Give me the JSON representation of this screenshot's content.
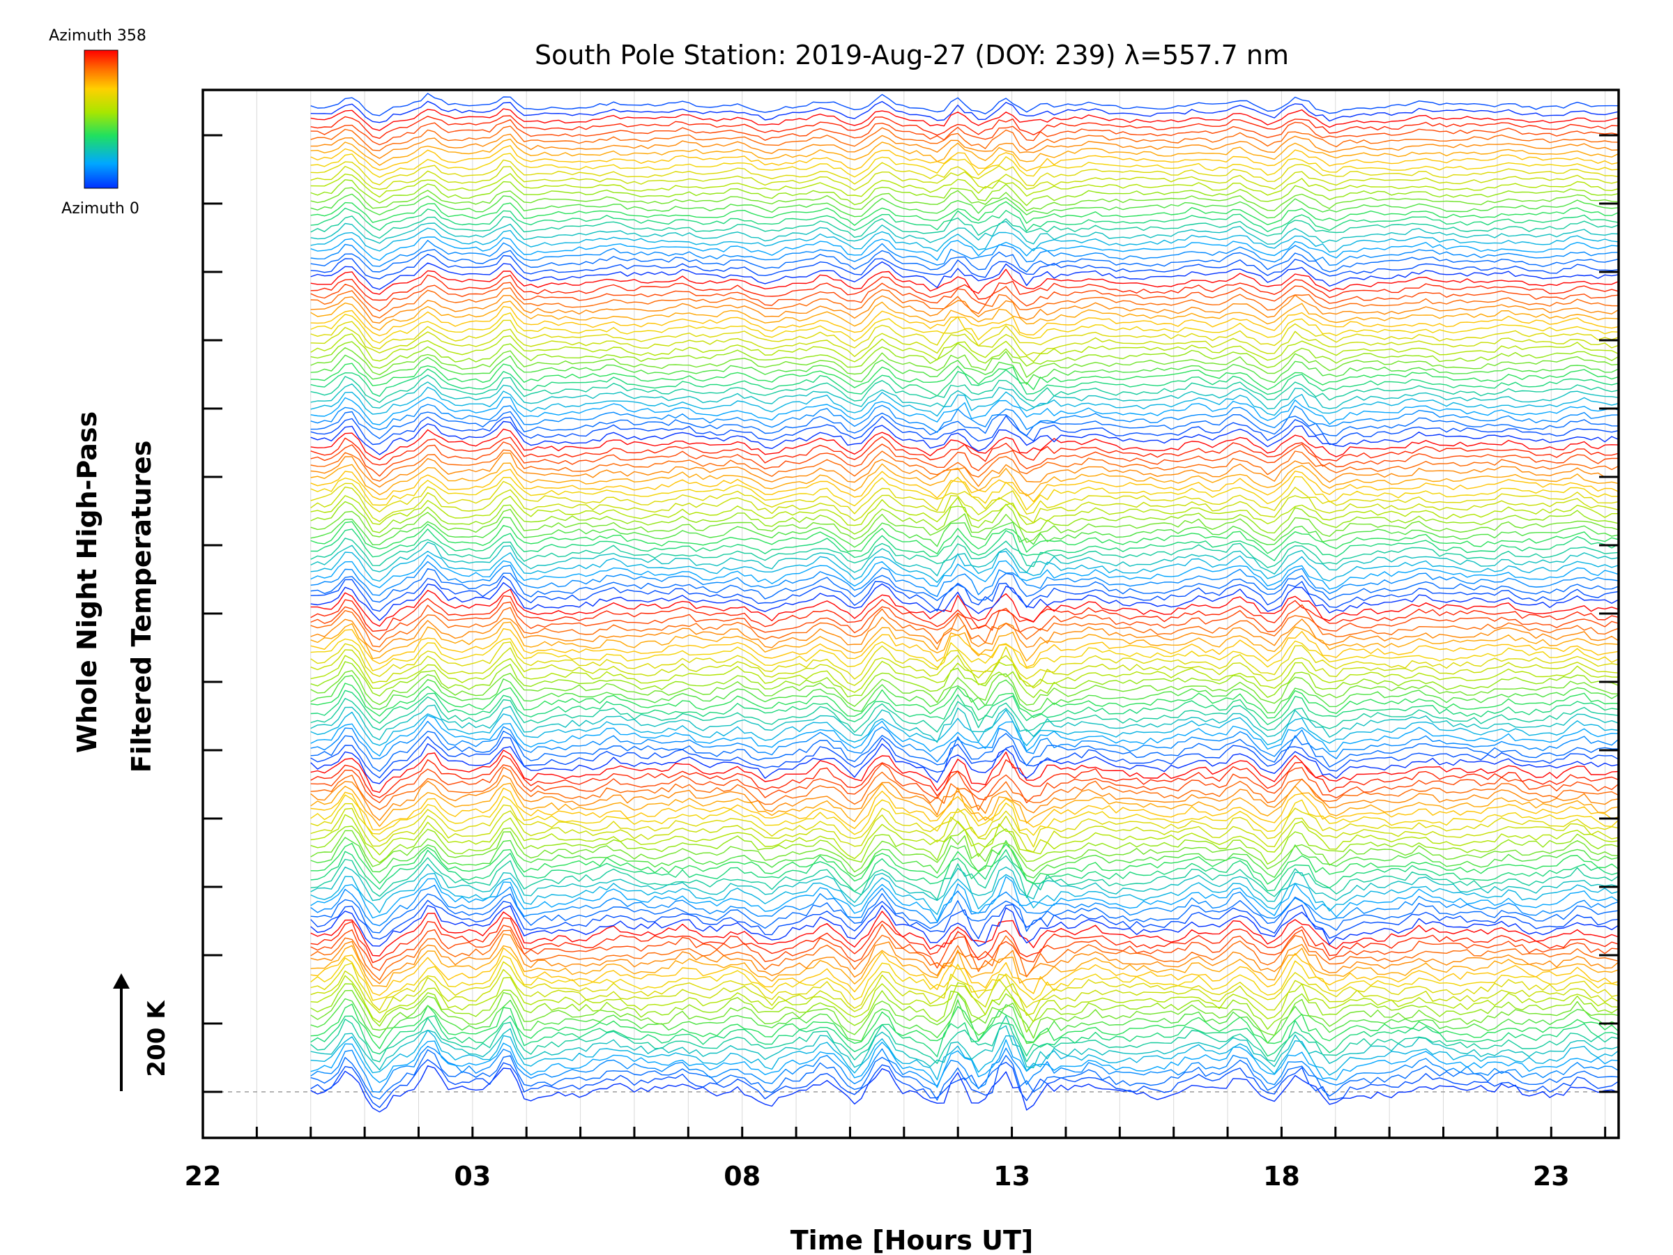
{
  "chart_data": {
    "type": "line",
    "title": "South Pole Station: 2019-Aug-27 (DOY: 239) λ=557.7 nm",
    "xlabel": "Time [Hours UT]",
    "ylabel_line1": "Whole Night High-Pass",
    "ylabel_line2": "Filtered Temperatures",
    "x_range_hours": [
      22,
      48.25
    ],
    "x_ticks": [
      {
        "value": 22,
        "label": "22"
      },
      {
        "value": 27,
        "label": "03"
      },
      {
        "value": 32,
        "label": "08"
      },
      {
        "value": 37,
        "label": "13"
      },
      {
        "value": 42,
        "label": "18"
      },
      {
        "value": 47,
        "label": "23"
      }
    ],
    "data_start_hour": 24.0,
    "data_end_hour": 48.25,
    "n_series": 146,
    "series_per_cycle": 24,
    "scale_bar": "200 K",
    "legend": {
      "top_label": "Azimuth 358",
      "bottom_label": "Azimuth 0",
      "azimuth_min": 0,
      "azimuth_max": 358,
      "colors": [
        "#0030ff",
        "#00a8ff",
        "#20e060",
        "#a8e600",
        "#ffd000",
        "#ff7000",
        "#ff0000"
      ]
    },
    "common_peaks": [
      {
        "t": 24.7,
        "amp": 2.2
      },
      {
        "t": 25.25,
        "amp": -1.7
      },
      {
        "t": 26.2,
        "amp": 2.0
      },
      {
        "t": 27.65,
        "amp": 2.4
      },
      {
        "t": 27.95,
        "amp": -0.6
      },
      {
        "t": 29.6,
        "amp": 0.6
      },
      {
        "t": 30.9,
        "amp": 0.5
      },
      {
        "t": 31.9,
        "amp": 0.6
      },
      {
        "t": 32.5,
        "amp": -0.8
      },
      {
        "t": 33.5,
        "amp": 0.9
      },
      {
        "t": 34.1,
        "amp": -1.3
      },
      {
        "t": 34.6,
        "amp": 1.8
      },
      {
        "t": 35.6,
        "amp": -1.1
      },
      {
        "t": 36.0,
        "amp": 1.4
      },
      {
        "t": 36.4,
        "amp": -0.9
      },
      {
        "t": 36.9,
        "amp": 1.6
      },
      {
        "t": 37.3,
        "amp": -1.3
      },
      {
        "t": 38.5,
        "amp": 0.6
      },
      {
        "t": 40.4,
        "amp": 0.7
      },
      {
        "t": 41.2,
        "amp": 1.1
      },
      {
        "t": 41.8,
        "amp": -1.2
      },
      {
        "t": 42.3,
        "amp": 1.6
      },
      {
        "t": 42.95,
        "amp": -1.0
      },
      {
        "t": 44.6,
        "amp": 0.6
      },
      {
        "t": 46.2,
        "amp": 0.5
      },
      {
        "t": 47.5,
        "amp": 0.8
      }
    ]
  }
}
